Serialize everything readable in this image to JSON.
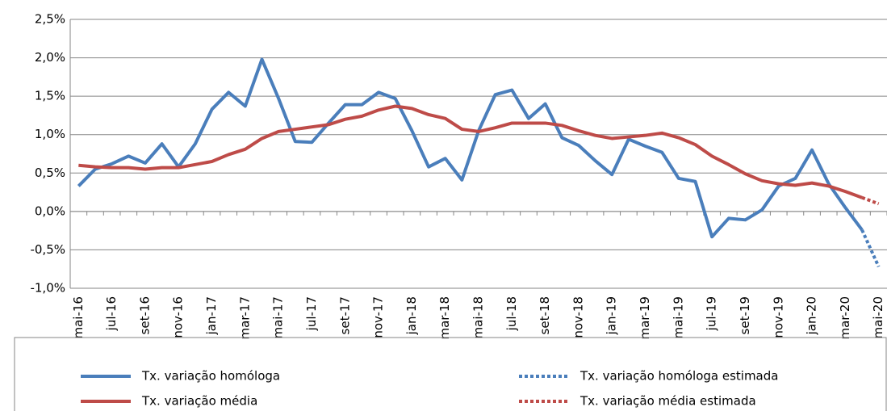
{
  "chart_data": {
    "type": "line",
    "categories": [
      "mai-16",
      null,
      "jul-16",
      null,
      "set-16",
      null,
      "nov-16",
      null,
      "jan-17",
      null,
      "mar-17",
      null,
      "mai-17",
      null,
      "jul-17",
      null,
      "set-17",
      null,
      "nov-17",
      null,
      "jan-18",
      null,
      "mar-18",
      null,
      "mai-18",
      null,
      "jul-18",
      null,
      "set-18",
      null,
      "nov-18",
      null,
      "jan-19",
      null,
      "mar-19",
      null,
      "mai-19",
      null,
      "jul-19",
      null,
      "set-19",
      null,
      "nov-19",
      null,
      "jan-20",
      null,
      "mar-20",
      null,
      "mai-20"
    ],
    "series": [
      {
        "name": "Tx. variação homóloga",
        "color": "#4a7ebb",
        "dashed": false,
        "values": [
          0.33,
          0.55,
          0.62,
          0.72,
          0.63,
          0.88,
          0.58,
          0.88,
          1.33,
          1.55,
          1.37,
          1.98,
          1.47,
          0.91,
          0.9,
          1.15,
          1.39,
          1.39,
          1.55,
          1.47,
          1.05,
          0.58,
          0.69,
          0.41,
          1.05,
          1.52,
          1.58,
          1.21,
          1.4,
          0.96,
          0.86,
          0.66,
          0.48,
          0.94,
          0.85,
          0.77,
          0.43,
          0.39,
          -0.33,
          -0.09,
          -0.11,
          0.02,
          0.33,
          0.43,
          0.8,
          0.36,
          0.05,
          -0.24,
          null
        ]
      },
      {
        "name": "Tx. variação média",
        "color": "#be4b48",
        "dashed": false,
        "values": [
          0.6,
          0.58,
          0.57,
          0.57,
          0.55,
          0.57,
          0.57,
          0.61,
          0.65,
          0.74,
          0.81,
          0.95,
          1.04,
          1.07,
          1.1,
          1.13,
          1.2,
          1.24,
          1.32,
          1.37,
          1.34,
          1.26,
          1.21,
          1.07,
          1.04,
          1.09,
          1.15,
          1.15,
          1.15,
          1.12,
          1.05,
          0.99,
          0.95,
          0.97,
          0.99,
          1.02,
          0.96,
          0.87,
          0.72,
          0.61,
          0.49,
          0.4,
          0.36,
          0.34,
          0.37,
          0.33,
          0.26,
          0.18,
          null
        ]
      },
      {
        "name": "Tx. variação homóloga estimada",
        "color": "#4a7ebb",
        "dashed": true,
        "values": [
          null,
          null,
          null,
          null,
          null,
          null,
          null,
          null,
          null,
          null,
          null,
          null,
          null,
          null,
          null,
          null,
          null,
          null,
          null,
          null,
          null,
          null,
          null,
          null,
          null,
          null,
          null,
          null,
          null,
          null,
          null,
          null,
          null,
          null,
          null,
          null,
          null,
          null,
          null,
          null,
          null,
          null,
          null,
          null,
          null,
          null,
          null,
          -0.24,
          -0.72
        ]
      },
      {
        "name": "Tx. variação média  estimada",
        "color": "#be4b48",
        "dashed": true,
        "values": [
          null,
          null,
          null,
          null,
          null,
          null,
          null,
          null,
          null,
          null,
          null,
          null,
          null,
          null,
          null,
          null,
          null,
          null,
          null,
          null,
          null,
          null,
          null,
          null,
          null,
          null,
          null,
          null,
          null,
          null,
          null,
          null,
          null,
          null,
          null,
          null,
          null,
          null,
          null,
          null,
          null,
          null,
          null,
          null,
          null,
          null,
          null,
          0.18,
          0.1
        ]
      }
    ],
    "ylim": [
      -1,
      2.5
    ],
    "yticks": [
      {
        "value": -1,
        "label": "-1,0%"
      },
      {
        "value": -0.5,
        "label": "-0,5%"
      },
      {
        "value": 0,
        "label": "0,0%"
      },
      {
        "value": 0.5,
        "label": "0,5%"
      },
      {
        "value": 1,
        "label": "1,0%"
      },
      {
        "value": 1.5,
        "label": "1,5%"
      },
      {
        "value": 2,
        "label": "2,0%"
      },
      {
        "value": 2.5,
        "label": "2,5%"
      }
    ],
    "legend": "bottom"
  }
}
